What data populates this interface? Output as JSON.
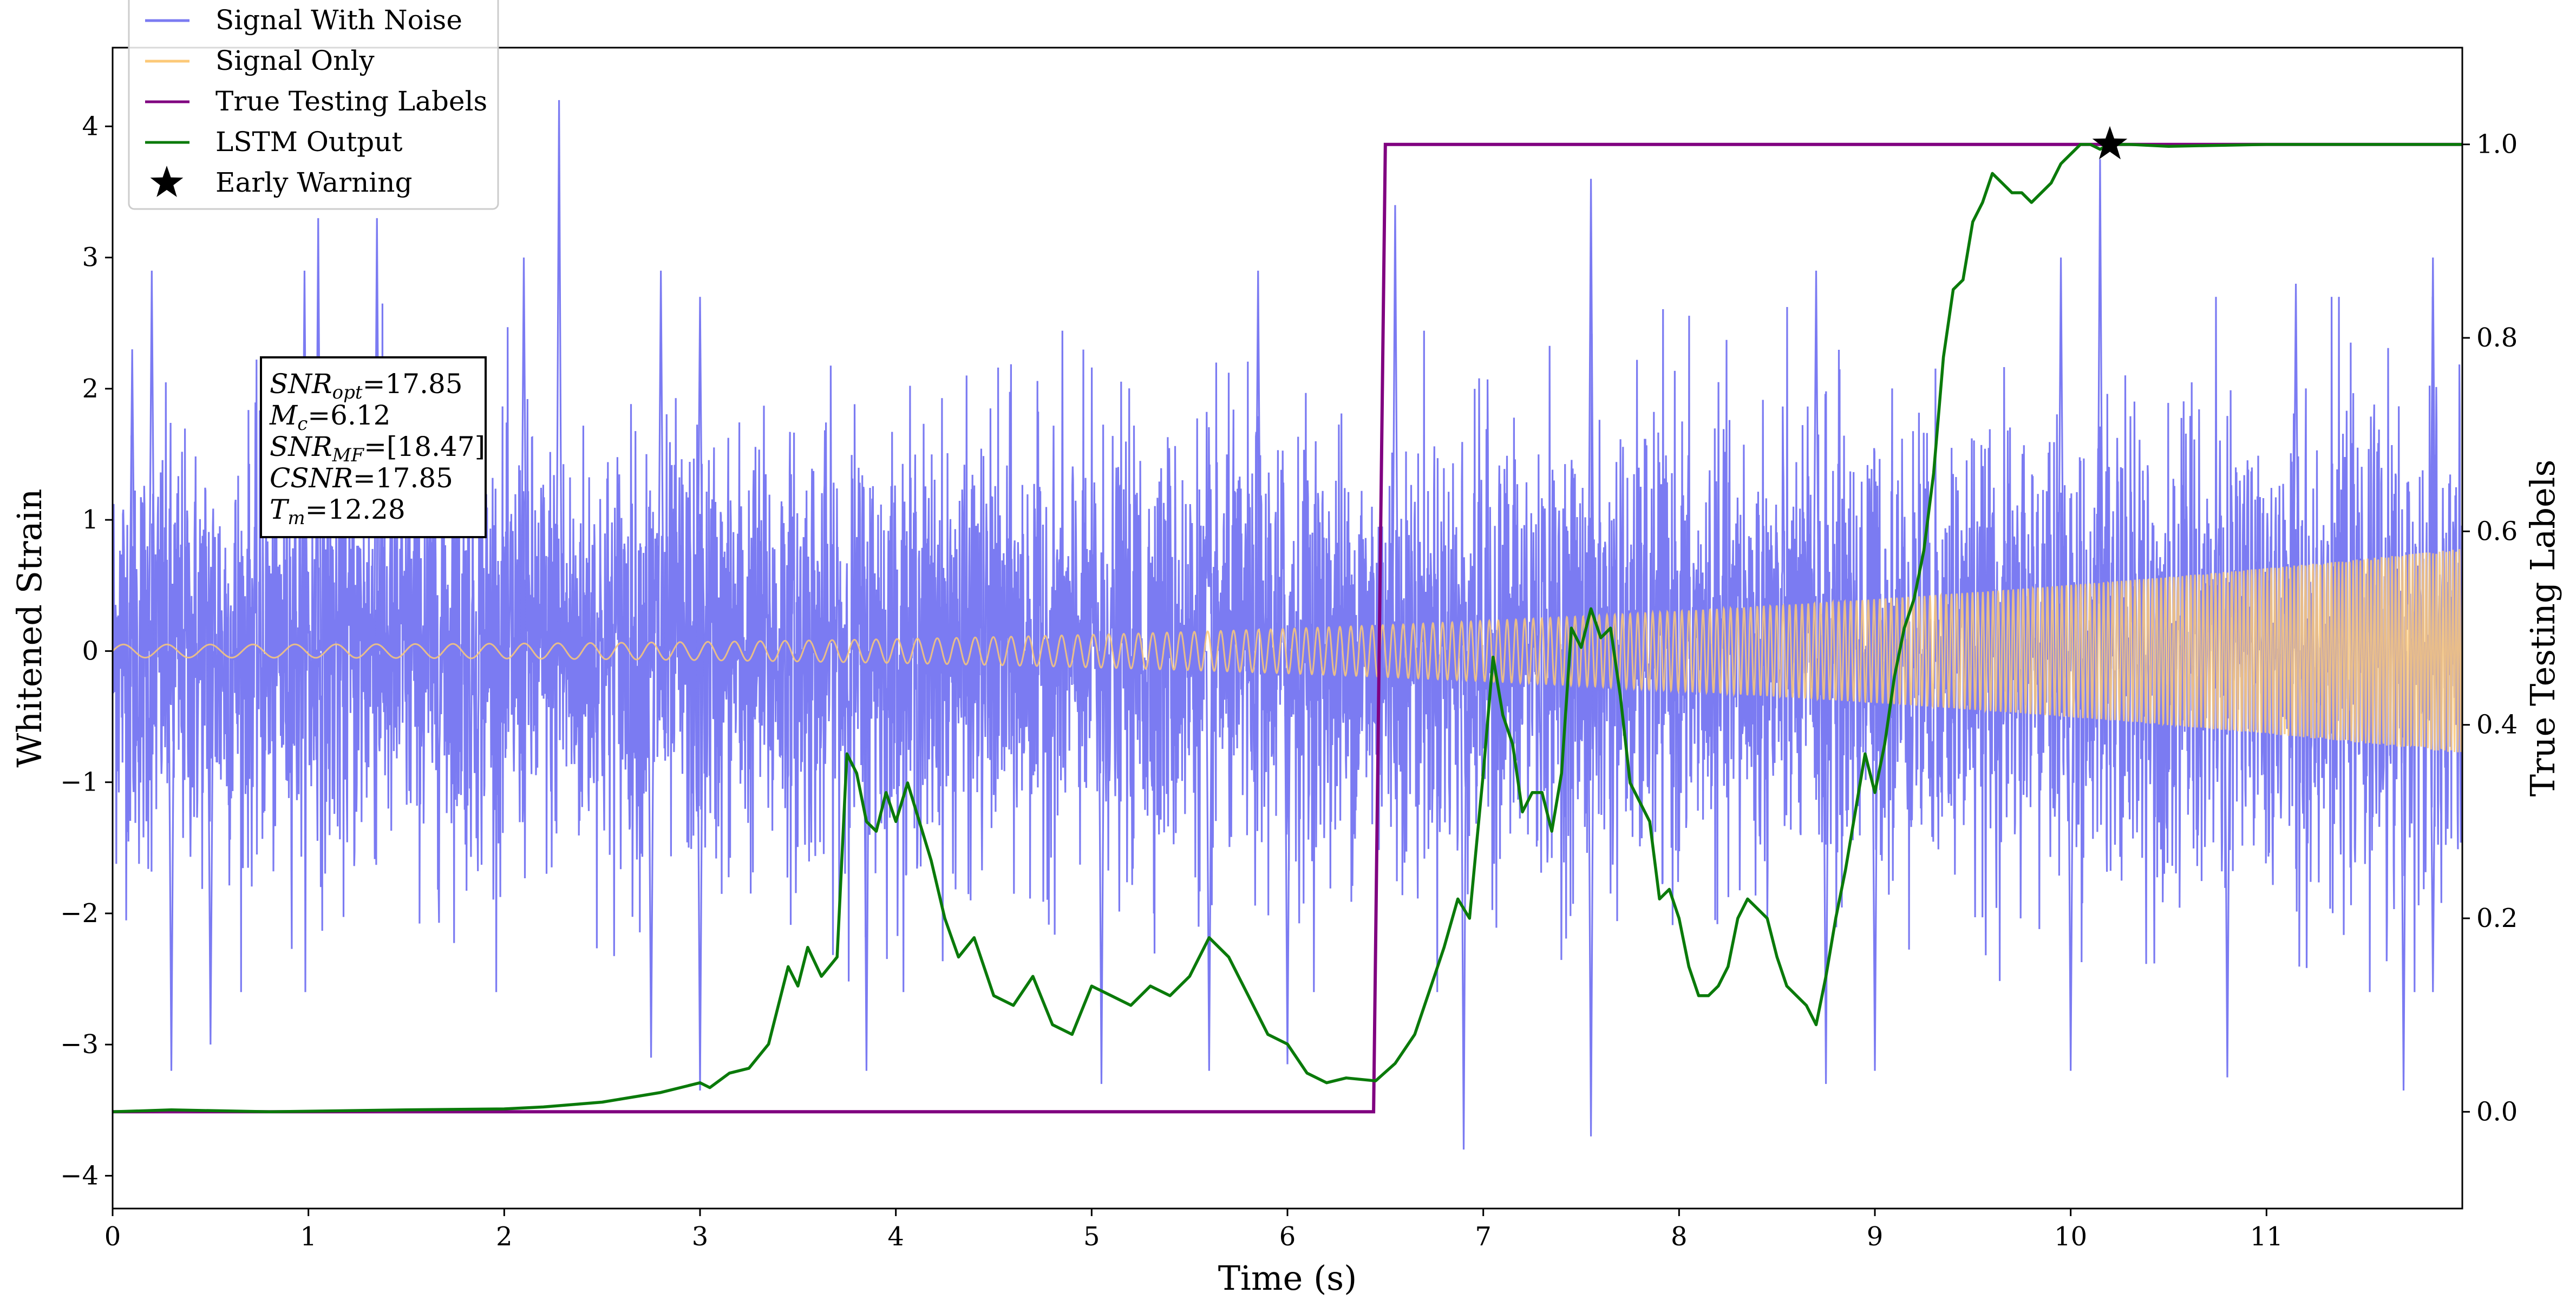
{
  "chart_data": {
    "type": "line",
    "xlabel": "Time (s)",
    "ylabel_left": "Whitened Strain",
    "ylabel_right": "True Testing Labels",
    "xlim": [
      0,
      12
    ],
    "ylim_left": [
      -4.25,
      4.6
    ],
    "ylim_right": [
      -0.1,
      1.1
    ],
    "x_ticks": [
      0,
      1,
      2,
      3,
      4,
      5,
      6,
      7,
      8,
      9,
      10,
      11
    ],
    "x_tick_labels": [
      "0",
      "1",
      "2",
      "3",
      "4",
      "5",
      "6",
      "7",
      "8",
      "9",
      "10",
      "11"
    ],
    "y_left_ticks": [
      -4,
      -3,
      -2,
      -1,
      0,
      1,
      2,
      3,
      4
    ],
    "y_left_tick_labels": [
      "−4",
      "−3",
      "−2",
      "−1",
      "0",
      "1",
      "2",
      "3",
      "4"
    ],
    "y_right_ticks": [
      0,
      0.2,
      0.4,
      0.6,
      0.8,
      1.0
    ],
    "y_right_tick_labels": [
      "0.0",
      "0.2",
      "0.4",
      "0.6",
      "0.8",
      "1.0"
    ],
    "legend_position": "top-left",
    "legend": [
      {
        "label": "Signal With Noise",
        "color": "#7b7bf2",
        "kind": "line"
      },
      {
        "label": "Signal Only",
        "color": "#fcc978",
        "kind": "line"
      },
      {
        "label": "True Testing Labels",
        "color": "#800080",
        "kind": "line"
      },
      {
        "label": "LSTM Output",
        "color": "#0a7a0a",
        "kind": "line"
      },
      {
        "label": "Early Warning",
        "color": "#000000",
        "kind": "star"
      }
    ],
    "annotation": [
      {
        "name": "SNR",
        "sub": "opt",
        "value": "=17.85"
      },
      {
        "name": "M",
        "sub": "c",
        "value": "=6.12"
      },
      {
        "name": "SNR",
        "sub": "MF",
        "value": "=[18.47]"
      },
      {
        "name": "CSNR",
        "sub": "",
        "value": "=17.85"
      },
      {
        "name": "T",
        "sub": "m",
        "value": "=12.28"
      }
    ],
    "series": [
      {
        "name": "Signal With Noise",
        "axis": "left",
        "color": "#7b7bf2",
        "noise_sigma": 0.8,
        "spike_peaks": [
          [
            0.1,
            2.3
          ],
          [
            0.2,
            2.9
          ],
          [
            0.98,
            2.9
          ],
          [
            1.05,
            3.3
          ],
          [
            1.35,
            3.3
          ],
          [
            2.1,
            3.0
          ],
          [
            2.28,
            4.2
          ],
          [
            2.8,
            2.9
          ],
          [
            3.0,
            2.7
          ],
          [
            5.85,
            2.9
          ],
          [
            6.55,
            3.4
          ],
          [
            7.55,
            3.6
          ],
          [
            8.7,
            2.9
          ],
          [
            9.95,
            3.0
          ],
          [
            10.15,
            3.75
          ],
          [
            11.15,
            2.8
          ],
          [
            11.85,
            3.0
          ],
          [
            0.3,
            -3.2
          ],
          [
            0.5,
            -3.0
          ],
          [
            2.75,
            -3.1
          ],
          [
            3.0,
            -3.35
          ],
          [
            3.85,
            -3.2
          ],
          [
            5.05,
            -3.3
          ],
          [
            5.6,
            -3.2
          ],
          [
            6.0,
            -3.15
          ],
          [
            6.9,
            -3.8
          ],
          [
            7.55,
            -3.7
          ],
          [
            8.75,
            -3.3
          ],
          [
            9.0,
            -3.2
          ],
          [
            10.0,
            -3.2
          ],
          [
            10.8,
            -3.25
          ],
          [
            11.7,
            -3.35
          ],
          [
            11.85,
            -2.6
          ]
        ]
      },
      {
        "name": "Signal Only",
        "axis": "left",
        "color": "#fcc978",
        "chirp_start_amplitude": 0.05,
        "chirp_end_amplitude": 0.78,
        "chirp_start_cycles_per_s": 4.5,
        "chirp_end_cycles_per_s": 60
      },
      {
        "name": "True Testing Labels",
        "axis": "right",
        "color": "#800080",
        "x": [
          0,
          6.44,
          6.5,
          12
        ],
        "y": [
          0,
          0,
          1,
          1
        ]
      },
      {
        "name": "LSTM Output",
        "axis": "right",
        "color": "#0a7a0a",
        "x": [
          0,
          0.3,
          0.8,
          1.5,
          2.0,
          2.2,
          2.5,
          2.8,
          3.0,
          3.05,
          3.15,
          3.25,
          3.35,
          3.45,
          3.5,
          3.55,
          3.62,
          3.7,
          3.75,
          3.8,
          3.85,
          3.9,
          3.95,
          4.0,
          4.06,
          4.12,
          4.18,
          4.25,
          4.32,
          4.4,
          4.5,
          4.6,
          4.7,
          4.8,
          4.9,
          5.0,
          5.1,
          5.2,
          5.3,
          5.4,
          5.5,
          5.6,
          5.7,
          5.8,
          5.9,
          6.0,
          6.1,
          6.2,
          6.3,
          6.45,
          6.55,
          6.65,
          6.75,
          6.8,
          6.87,
          6.93,
          7.0,
          7.05,
          7.1,
          7.15,
          7.2,
          7.25,
          7.3,
          7.35,
          7.4,
          7.45,
          7.5,
          7.55,
          7.6,
          7.65,
          7.7,
          7.75,
          7.8,
          7.85,
          7.9,
          7.95,
          8.0,
          8.05,
          8.1,
          8.15,
          8.2,
          8.25,
          8.3,
          8.35,
          8.4,
          8.45,
          8.5,
          8.55,
          8.6,
          8.65,
          8.7,
          8.75,
          8.8,
          8.85,
          8.9,
          8.95,
          9.0,
          9.05,
          9.1,
          9.15,
          9.2,
          9.25,
          9.3,
          9.35,
          9.4,
          9.45,
          9.5,
          9.55,
          9.6,
          9.65,
          9.7,
          9.75,
          9.8,
          9.85,
          9.9,
          9.95,
          10.0,
          10.05,
          10.1,
          10.15,
          10.2,
          10.3,
          10.5,
          11.0,
          12.0
        ],
        "y": [
          0,
          0.002,
          0,
          0.002,
          0.003,
          0.005,
          0.01,
          0.02,
          0.03,
          0.025,
          0.04,
          0.045,
          0.07,
          0.15,
          0.13,
          0.17,
          0.14,
          0.16,
          0.37,
          0.35,
          0.3,
          0.29,
          0.33,
          0.3,
          0.34,
          0.3,
          0.26,
          0.2,
          0.16,
          0.18,
          0.12,
          0.11,
          0.14,
          0.09,
          0.08,
          0.13,
          0.12,
          0.11,
          0.13,
          0.12,
          0.14,
          0.18,
          0.16,
          0.12,
          0.08,
          0.07,
          0.04,
          0.03,
          0.035,
          0.032,
          0.05,
          0.08,
          0.14,
          0.17,
          0.22,
          0.2,
          0.35,
          0.47,
          0.41,
          0.38,
          0.31,
          0.33,
          0.33,
          0.29,
          0.35,
          0.5,
          0.48,
          0.52,
          0.49,
          0.5,
          0.43,
          0.34,
          0.32,
          0.3,
          0.22,
          0.23,
          0.2,
          0.15,
          0.12,
          0.12,
          0.13,
          0.15,
          0.2,
          0.22,
          0.21,
          0.2,
          0.16,
          0.13,
          0.12,
          0.11,
          0.09,
          0.14,
          0.2,
          0.25,
          0.31,
          0.37,
          0.33,
          0.38,
          0.45,
          0.5,
          0.53,
          0.58,
          0.66,
          0.78,
          0.85,
          0.86,
          0.92,
          0.94,
          0.97,
          0.96,
          0.95,
          0.95,
          0.94,
          0.95,
          0.96,
          0.98,
          0.99,
          1.0,
          1.0,
          0.995,
          1.0,
          1.0,
          0.998,
          1.0,
          1.0
        ]
      }
    ],
    "early_warning": {
      "x": 10.2,
      "y": 1.0,
      "axis": "right"
    }
  }
}
